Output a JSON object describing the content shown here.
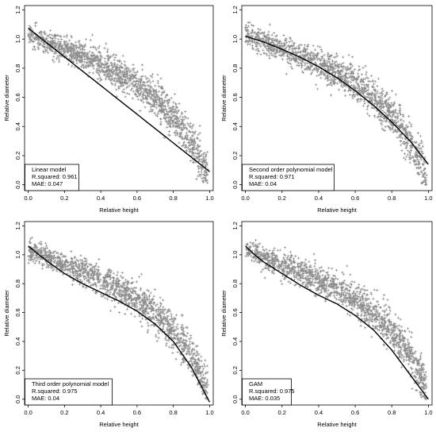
{
  "chart_data": [
    {
      "type": "scatter",
      "xlabel": "Relative height",
      "ylabel": "Relative diameter",
      "xlim": [
        0,
        1
      ],
      "ylim": [
        0,
        1.2
      ],
      "x_ticks": [
        "0.0",
        "0.2",
        "0.4",
        "0.6",
        "0.8",
        "1.0"
      ],
      "y_ticks": [
        "0.0",
        "0.2",
        "0.4",
        "0.6",
        "0.8",
        "1.0",
        "1.2"
      ],
      "legend": {
        "model": "Linear model",
        "r_squared": "R.squared: 0.961",
        "mae": "MAE: 0.047",
        "position": "bottom-left"
      },
      "fit_line": {
        "x": [
          0.0,
          1.0
        ],
        "y": [
          1.075,
          0.09
        ]
      },
      "point_color": "#8c8c8c",
      "line_color": "#000000"
    },
    {
      "type": "scatter",
      "xlabel": "Relative height",
      "ylabel": "Relative diameter",
      "xlim": [
        0,
        1
      ],
      "ylim": [
        0,
        1.2
      ],
      "x_ticks": [
        "0.0",
        "0.2",
        "0.4",
        "0.6",
        "0.8",
        "1.0"
      ],
      "y_ticks": [
        "0.0",
        "0.2",
        "0.4",
        "0.6",
        "0.8",
        "1.0",
        "1.2"
      ],
      "legend": {
        "model": "Second order polynomial model",
        "r_squared": "R.squared: 0.971",
        "mae": "MAE: 0.04",
        "position": "bottom-right"
      },
      "fit_line": {
        "x": [
          0.0,
          0.1,
          0.2,
          0.3,
          0.4,
          0.5,
          0.6,
          0.7,
          0.8,
          0.9,
          1.0
        ],
        "y": [
          1.02,
          0.98,
          0.93,
          0.875,
          0.81,
          0.735,
          0.645,
          0.545,
          0.43,
          0.3,
          0.14
        ]
      },
      "point_color": "#8c8c8c",
      "line_color": "#000000"
    },
    {
      "type": "scatter",
      "xlabel": "Relative height",
      "ylabel": "Relative diameter",
      "xlim": [
        0,
        1
      ],
      "ylim": [
        0,
        1.2
      ],
      "x_ticks": [
        "0.0",
        "0.2",
        "0.4",
        "0.6",
        "0.8",
        "1.0"
      ],
      "y_ticks": [
        "0.0",
        "0.2",
        "0.4",
        "0.6",
        "0.8",
        "1.0",
        "1.2"
      ],
      "legend": {
        "model": "Third order polynomial model",
        "r_squared": "R.squared: 0.975",
        "mae": "MAE: 0.04",
        "position": "bottom-left"
      },
      "fit_line": {
        "x": [
          0.0,
          0.1,
          0.2,
          0.3,
          0.4,
          0.5,
          0.6,
          0.7,
          0.8,
          0.9,
          1.0
        ],
        "y": [
          1.06,
          0.96,
          0.87,
          0.8,
          0.74,
          0.68,
          0.61,
          0.52,
          0.4,
          0.22,
          -0.02
        ]
      },
      "point_color": "#8c8c8c",
      "line_color": "#000000"
    },
    {
      "type": "scatter",
      "xlabel": "Relative height",
      "ylabel": "Relative diameter",
      "xlim": [
        0,
        1
      ],
      "ylim": [
        0,
        1.2
      ],
      "x_ticks": [
        "0.0",
        "0.2",
        "0.4",
        "0.6",
        "0.8",
        "1.0"
      ],
      "y_ticks": [
        "0.0",
        "0.2",
        "0.4",
        "0.6",
        "0.8",
        "1.0",
        "1.2"
      ],
      "legend": {
        "model": "GAM",
        "r_squared": "R.squared: 0.975",
        "mae": "MAE: 0.035",
        "position": "bottom-right"
      },
      "fit_line": {
        "x": [
          0.0,
          0.05,
          0.1,
          0.2,
          0.3,
          0.4,
          0.5,
          0.6,
          0.7,
          0.75,
          0.8,
          0.9,
          1.0
        ],
        "y": [
          1.06,
          1.0,
          0.95,
          0.87,
          0.79,
          0.72,
          0.66,
          0.58,
          0.48,
          0.41,
          0.34,
          0.17,
          0.0
        ]
      },
      "point_color": "#8c8c8c",
      "line_color": "#000000"
    }
  ]
}
